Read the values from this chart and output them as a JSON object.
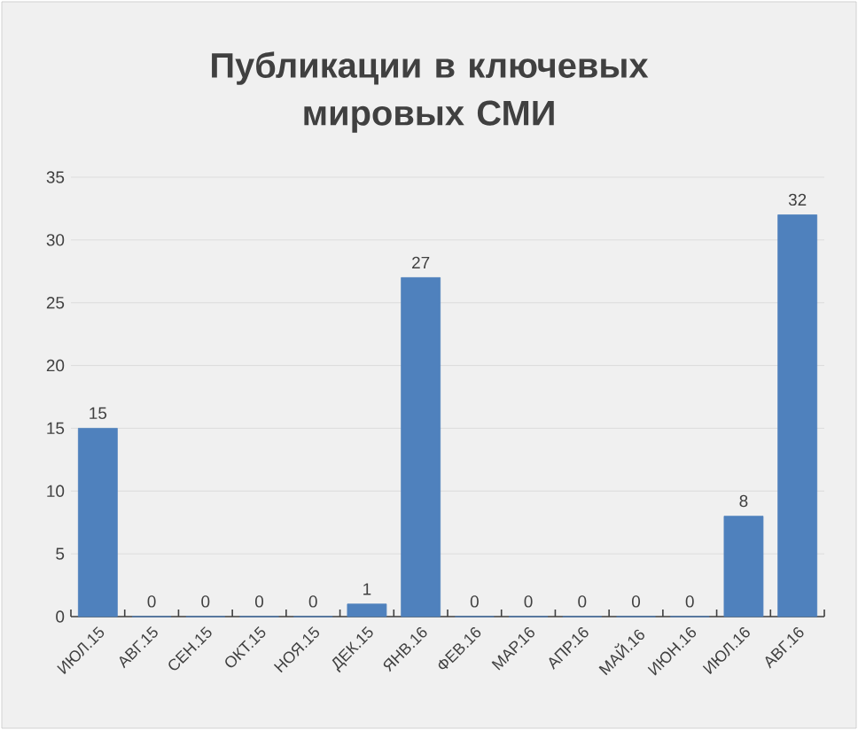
{
  "chart_data": {
    "type": "bar",
    "title": "Публикации в ключевых мировых СМИ",
    "categories": [
      "ИЮЛ.15",
      "АВГ.15",
      "СЕН.15",
      "ОКТ.15",
      "НОЯ.15",
      "ДЕК.15",
      "ЯНВ.16",
      "ФЕВ.16",
      "МАР.16",
      "АПР.16",
      "МАЙ.16",
      "ИЮН.16",
      "ИЮЛ.16",
      "АВГ.16"
    ],
    "values": [
      15,
      0,
      0,
      0,
      0,
      1,
      27,
      0,
      0,
      0,
      0,
      0,
      8,
      32
    ],
    "color": "#4f81bd",
    "ylim": [
      0,
      35
    ],
    "yticks": [
      0,
      5,
      10,
      15,
      20,
      25,
      30,
      35
    ],
    "grid": "y",
    "data_labels": true
  }
}
